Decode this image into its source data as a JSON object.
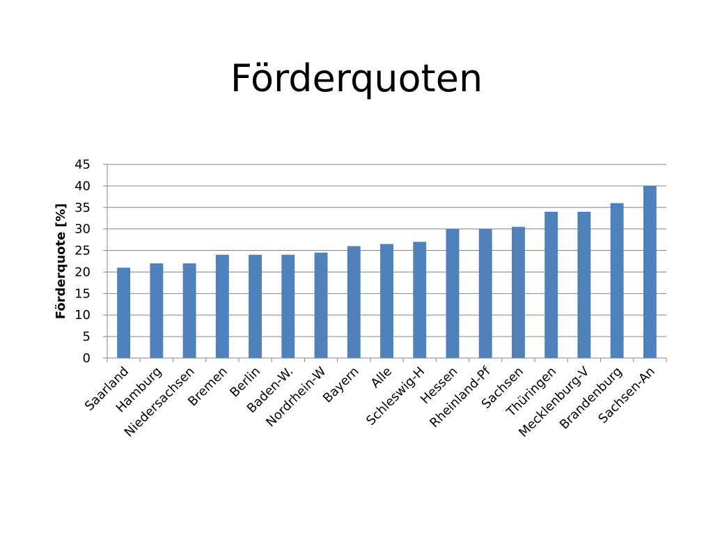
{
  "slide": {
    "title": "Förderquoten"
  },
  "chart_data": {
    "type": "bar",
    "title": "Förderquoten",
    "xlabel": "",
    "ylabel": "Förderquote [%]",
    "ylim": [
      0,
      45
    ],
    "yticks": [
      0,
      5,
      10,
      15,
      20,
      25,
      30,
      35,
      40,
      45
    ],
    "grid": true,
    "legend": "none",
    "bar_color": "#4F81BD",
    "categories": [
      "Saarland",
      "Hamburg",
      "Niedersachsen",
      "Bremen",
      "Berlin",
      "Baden-W.",
      "Nordrhein-W",
      "Bayern",
      "Alle",
      "Schleswig-H",
      "Hessen",
      "Rheinland-Pf",
      "Sachsen",
      "Thüringen",
      "Mecklenburg-V",
      "Brandenburg",
      "Sachsen-An"
    ],
    "values": [
      21,
      22,
      22,
      24,
      24,
      24,
      24.5,
      26,
      26.5,
      27,
      30,
      30,
      30.5,
      34,
      34,
      36,
      40
    ]
  }
}
